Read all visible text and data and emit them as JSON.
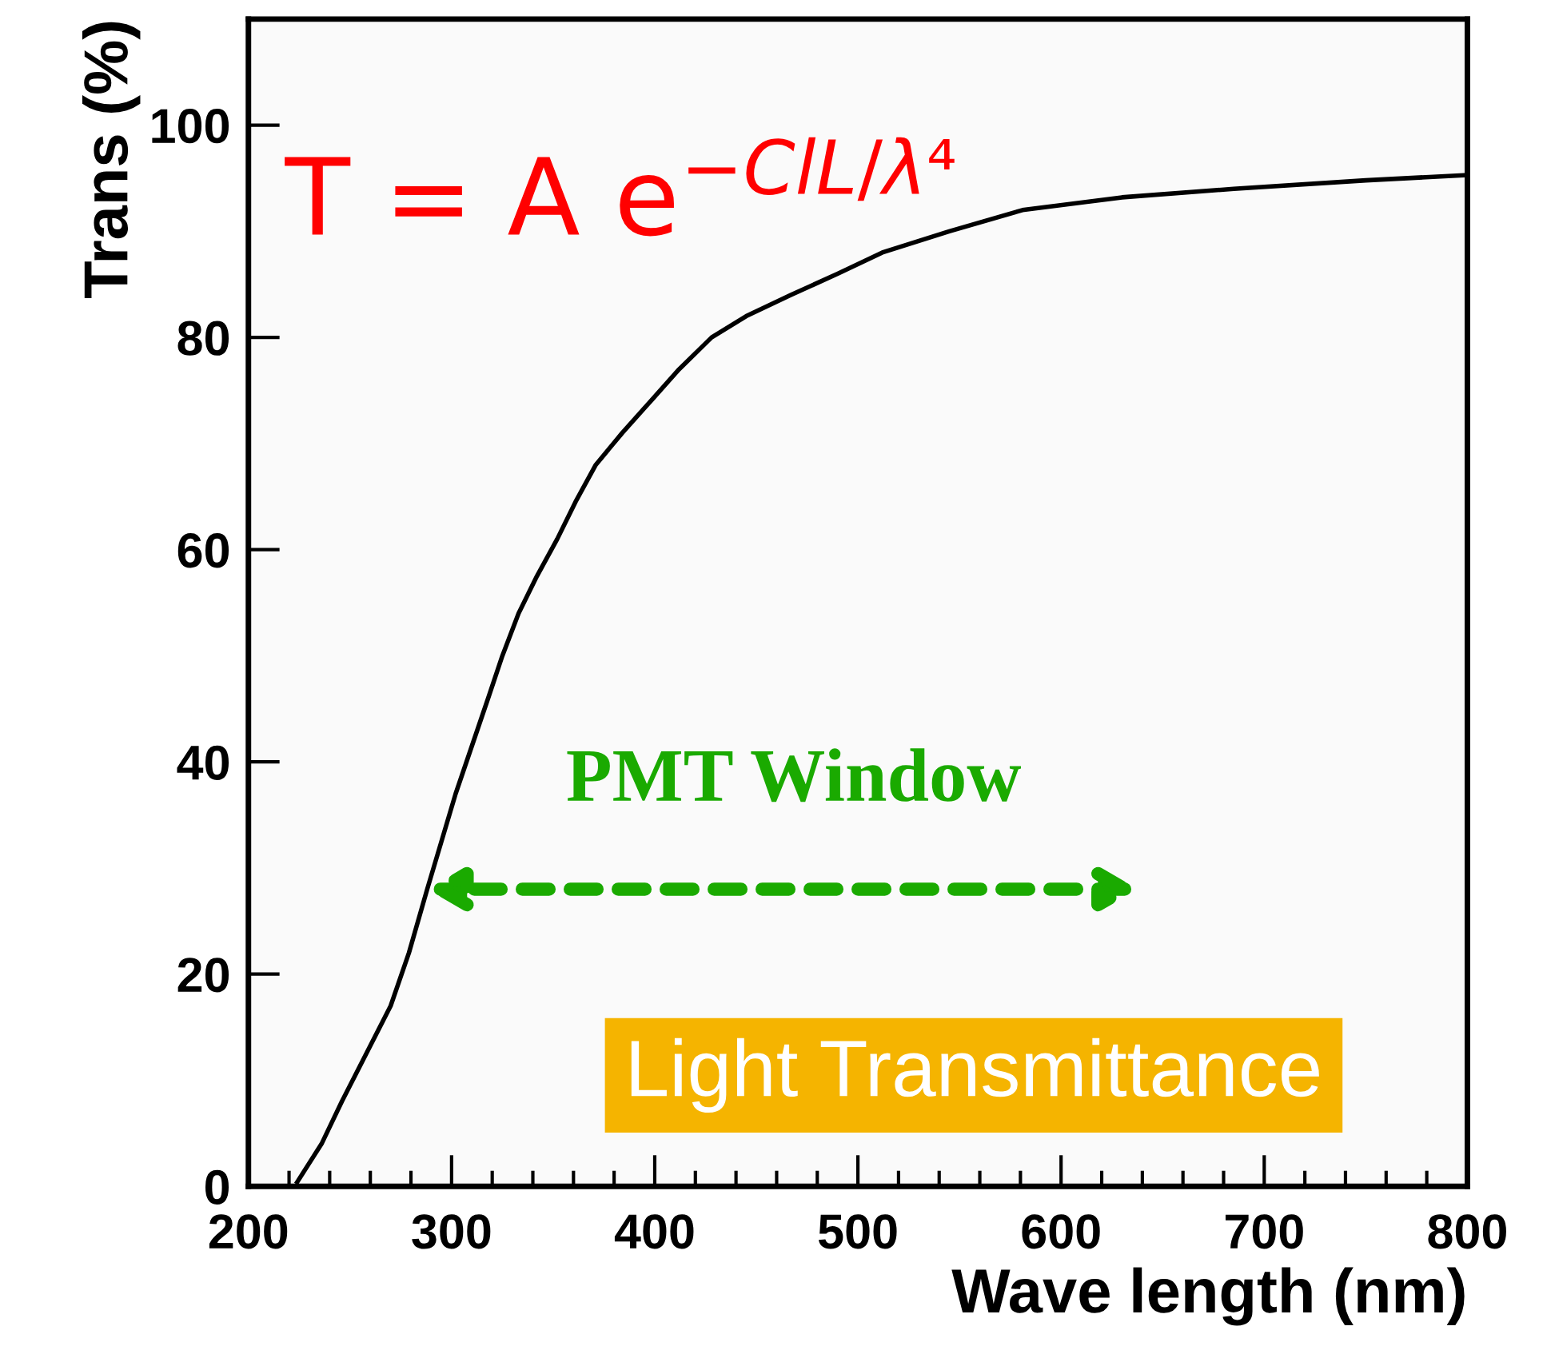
{
  "chart_data": {
    "type": "line",
    "xlabel": "Wave length (nm)",
    "ylabel": "Trans (%)",
    "x": [
      224,
      236,
      246,
      258,
      270,
      279,
      288,
      295,
      302,
      310,
      318,
      325,
      333,
      342,
      352,
      361,
      371,
      384,
      398,
      412,
      428,
      445,
      467,
      490,
      512,
      545,
      581,
      630,
      685,
      750,
      800
    ],
    "series": [
      {
        "color": "#000000",
        "values": [
          0.4,
          4,
          8,
          12.5,
          17,
          22,
          28,
          32.5,
          37,
          41.5,
          46,
          50,
          54,
          57.5,
          61,
          64.5,
          68,
          71,
          74,
          77,
          80,
          82,
          84,
          86,
          88,
          90,
          92,
          93.2,
          94,
          94.8,
          95.3
        ]
      }
    ],
    "xlim": [
      200,
      800
    ],
    "ylim": [
      0,
      110
    ],
    "xticks": [
      200,
      300,
      400,
      500,
      600,
      700,
      800
    ],
    "yticks": [
      0,
      20,
      40,
      60,
      80,
      100
    ],
    "grid": false,
    "legend": false,
    "marker": "none",
    "line_style": "solid",
    "annotations": [
      "T = A e$^{−ClL/λ⁴}$",
      {
        "text": "PMT Window",
        "x": 288,
        "y": 28
      },
      "Light Transmittance"
    ]
  }
}
